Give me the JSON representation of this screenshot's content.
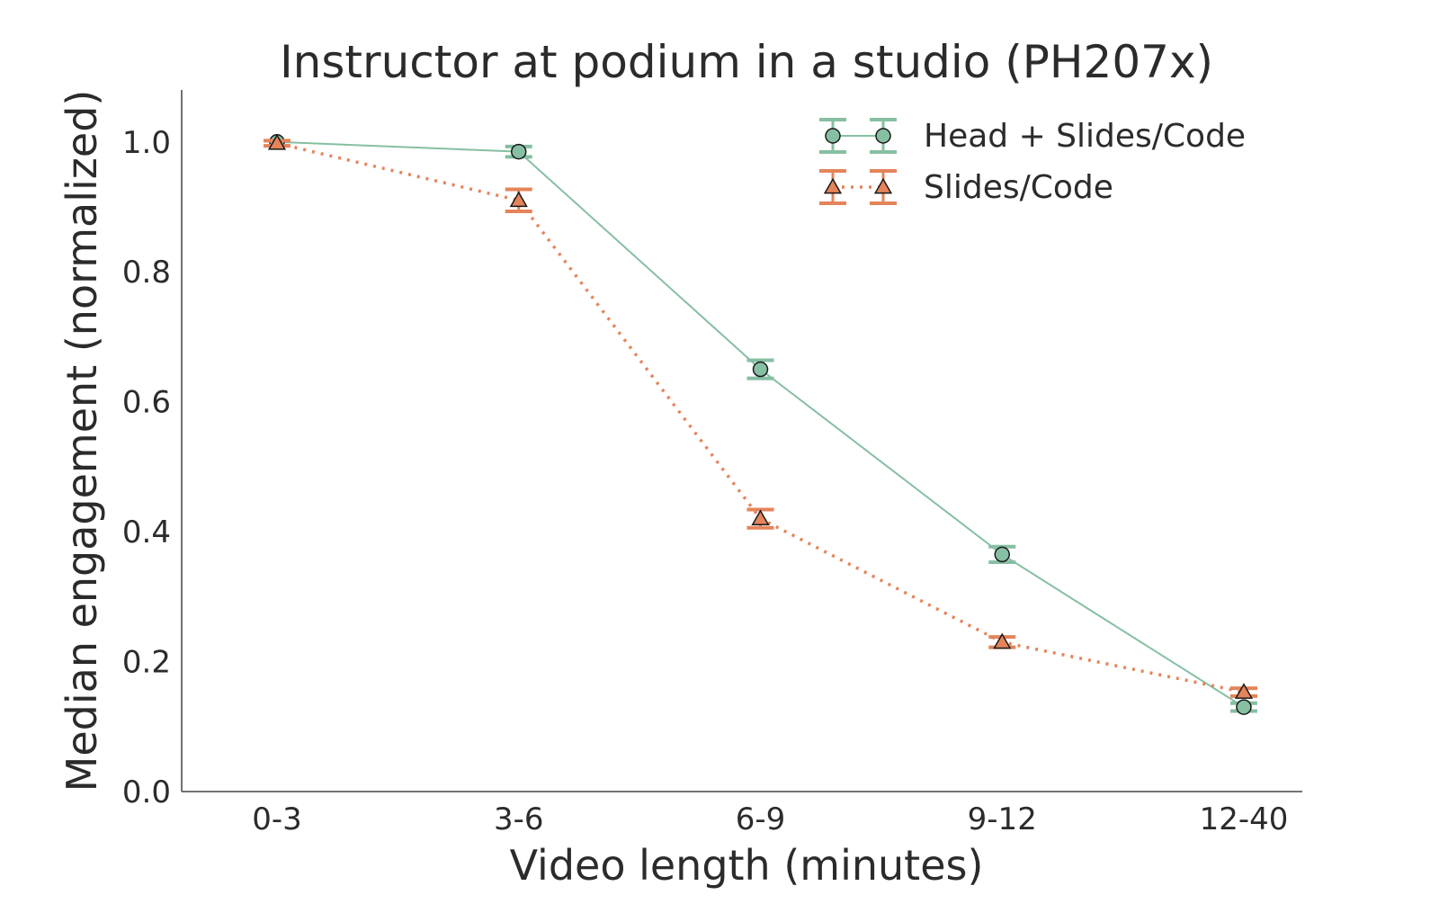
{
  "chart_data": {
    "type": "line",
    "title": "Instructor at podium in a studio (PH207x)",
    "xlabel": "Video length (minutes)",
    "ylabel": "Median engagement (normalized)",
    "categories": [
      "0-3",
      "3-6",
      "6-9",
      "9-12",
      "12-40"
    ],
    "ylim": [
      0.0,
      1.08
    ],
    "yticks": [
      "0.0",
      "0.2",
      "0.4",
      "0.6",
      "0.8",
      "1.0"
    ],
    "grid": false,
    "legend_position": "top-right",
    "series": [
      {
        "name": "Head + Slides/Code",
        "values": [
          1.0,
          0.985,
          0.65,
          0.365,
          0.13
        ],
        "errors": [
          0.0,
          0.008,
          0.014,
          0.012,
          0.006
        ],
        "color": "#86bfa2",
        "marker": "circle",
        "line_style": "solid"
      },
      {
        "name": "Slides/Code",
        "values": [
          0.998,
          0.91,
          0.42,
          0.23,
          0.153
        ],
        "errors": [
          0.004,
          0.017,
          0.014,
          0.008,
          0.006
        ],
        "color": "#e4845a",
        "marker": "triangle",
        "line_style": "dotted"
      }
    ]
  }
}
